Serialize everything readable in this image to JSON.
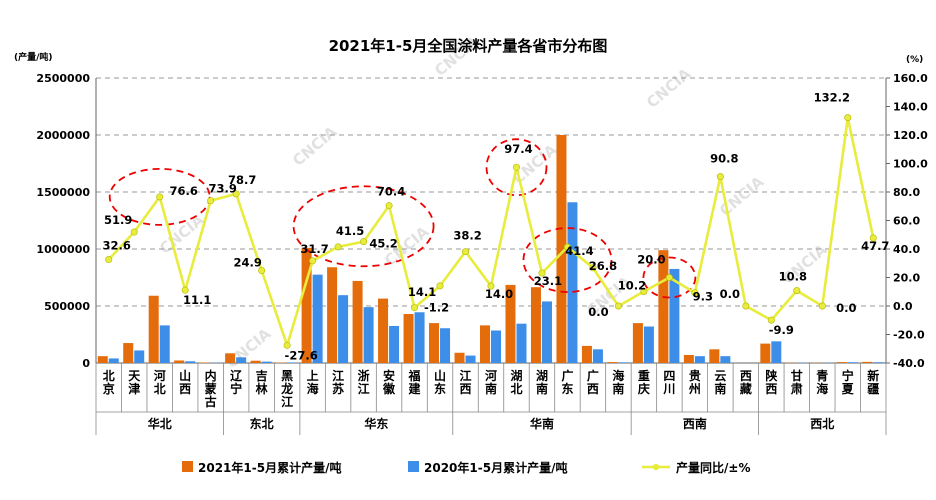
{
  "chart_data": {
    "type": "bar+line",
    "title": "2021年1-5月全国涂料产量各省市分布图",
    "left_axis_unit": "(产量/吨)",
    "right_axis_unit": "(%)",
    "left_ylim": [
      0,
      2500000
    ],
    "left_ticks": [
      0,
      500000,
      1000000,
      1500000,
      2000000,
      2500000
    ],
    "right_ylim": [
      -40,
      160
    ],
    "right_ticks": [
      "-40.0",
      "-20.0",
      "0.0",
      "20.0",
      "40.0",
      "60.0",
      "80.0",
      "100.0",
      "120.0",
      "140.0",
      "160.0"
    ],
    "categories": [
      "北京",
      "天津",
      "河北",
      "山西",
      "内蒙古",
      "辽宁",
      "吉林",
      "黑龙江",
      "上海",
      "江苏",
      "浙江",
      "安徽",
      "福建",
      "山东",
      "江西",
      "河南",
      "湖北",
      "湖南",
      "广东",
      "广西",
      "海南",
      "重庆",
      "四川",
      "贵州",
      "云南",
      "西藏",
      "陕西",
      "甘肃",
      "青海",
      "宁夏",
      "新疆"
    ],
    "category_display": [
      "北\n京",
      "天\n津",
      "河\n北",
      "山\n西",
      "内\n蒙\n古",
      "辽\n宁",
      "吉\n林",
      "黑\n龙\n江",
      "上\n海",
      "江\n苏",
      "浙\n江",
      "安\n徽",
      "福\n建",
      "山\n东",
      "江\n西",
      "河\n南",
      "湖\n北",
      "湖\n南",
      "广\n东",
      "广\n西",
      "海\n南",
      "重\n庆",
      "四\n川",
      "贵\n州",
      "云\n南",
      "西\n藏",
      "陕\n西",
      "甘\n肃",
      "青\n海",
      "宁\n夏",
      "新\n疆"
    ],
    "regions": [
      {
        "name": "华北",
        "from": 0,
        "to": 4
      },
      {
        "name": "东北",
        "from": 5,
        "to": 7
      },
      {
        "name": "华东",
        "from": 8,
        "to": 13
      },
      {
        "name": "华南",
        "from": 14,
        "to": 20
      },
      {
        "name": "西南",
        "from": 21,
        "to": 25
      },
      {
        "name": "西北",
        "from": 26,
        "to": 30
      }
    ],
    "series": [
      {
        "name": "2021年1-5月累计产量/吨",
        "type": "bar",
        "axis": "left",
        "color": "#e46c0a",
        "values": [
          60000,
          175000,
          590000,
          22000,
          4000,
          85000,
          20000,
          4000,
          1010000,
          840000,
          720000,
          565000,
          430000,
          350000,
          90000,
          330000,
          685000,
          665000,
          2000000,
          150000,
          8000,
          350000,
          990000,
          70000,
          120000,
          0,
          170000,
          3000,
          2000,
          8000,
          10000
        ]
      },
      {
        "name": "2020年1-5月累计产量/吨",
        "type": "bar",
        "axis": "left",
        "color": "#3d8ee8",
        "values": [
          40000,
          110000,
          330000,
          15000,
          3000,
          50000,
          12000,
          5000,
          775000,
          595000,
          490000,
          325000,
          445000,
          305000,
          65000,
          285000,
          345000,
          540000,
          1410000,
          120000,
          6000,
          320000,
          825000,
          60000,
          60000,
          0,
          190000,
          3000,
          2000,
          7000,
          7000
        ]
      },
      {
        "name": "产量同比/±%",
        "type": "line",
        "axis": "right",
        "color": "#e8ec3c",
        "values": [
          32.6,
          51.9,
          76.6,
          11.1,
          73.9,
          78.7,
          24.9,
          -27.6,
          31.7,
          41.5,
          45.2,
          70.4,
          -1.2,
          14.1,
          38.2,
          14.0,
          97.4,
          23.1,
          41.4,
          26.8,
          0.0,
          10.2,
          20.0,
          9.3,
          90.8,
          0.0,
          -9.9,
          10.8,
          0.0,
          132.2,
          47.7
        ],
        "labels": [
          "32.6",
          "51.9",
          "76.6",
          "11.1",
          "73.9",
          "78.7",
          "24.9",
          "-27.6",
          "31.7",
          "41.5",
          "45.2",
          "70.4",
          "-1.2",
          "14.1",
          "38.2",
          "14.0",
          "97.4",
          "23.1",
          "41.4",
          "26.8",
          "0.0",
          "10.2",
          "20.0",
          "9.3",
          "90.8",
          "0.0",
          "-9.9",
          "10.8",
          "0.0",
          "132.2",
          "47.7"
        ]
      }
    ],
    "legend": [
      "2021年1-5月累计产量/吨",
      "2020年1-5月累计产量/吨",
      "产量同比/±%"
    ],
    "highlight_circles": [
      "河北",
      "江苏-浙江-安徽",
      "湖北",
      "湖南-广东",
      "四川"
    ],
    "watermark": "CNCIA"
  }
}
